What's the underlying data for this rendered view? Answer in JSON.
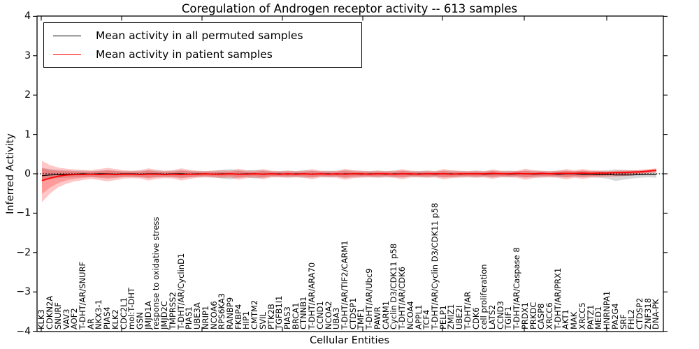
{
  "chart_data": {
    "type": "line",
    "title": "Coregulation of Androgen receptor activity -- 613 samples",
    "xlabel": "Cellular Entities",
    "ylabel": "Inferred Activity",
    "ylim": [
      -4,
      4
    ],
    "yticks": [
      4,
      3,
      2,
      1,
      0,
      -1,
      -2,
      -3,
      -4
    ],
    "grid": false,
    "legend_position": "upper left",
    "zero_line": {
      "style": "dotted",
      "color": "#000000"
    },
    "categories": [
      "KLK3",
      "CDKN2A",
      "SNURF",
      "VAV3",
      "AOF2",
      "T-DHT/AR/SNURF",
      "AR",
      "NKX3-1",
      "PIAS4",
      "KLK2",
      "CDC2L1",
      "mol:T-DHT",
      "GSN",
      "JMJD1A",
      "response to oxidative stress",
      "JMJD2C",
      "TMPRSS2",
      "T-DHT/AR/CyclinD1",
      "PIAS1",
      "UBE3A",
      "NRIP1",
      "NCOA6",
      "RPS6KA3",
      "RANBP9",
      "FKBP4",
      "HIP1",
      "CMTM2",
      "SVIL",
      "PTK2B",
      "TGFB1I1",
      "PIAS3",
      "BRCA1",
      "CTNNB1",
      "T-DHT/AR/ARA70",
      "CCND1",
      "NCOA2",
      "UBA3",
      "T-DHT/AR/TIF2/CARM1",
      "CTDSP1",
      "TMF1",
      "T-DHT/AR/Ubc9",
      "PAWR",
      "CARM1",
      "Cyclin D3/CDK11 p58",
      "T-DHT/AR/CDK6",
      "NCOA4",
      "APPL1",
      "TCF4",
      "T-DHT/AR/Cyclin D3/CDK11 p58",
      "PELP1",
      "ZMIZ1",
      "UBE2I",
      "T-DHT/AR",
      "CDK6",
      "cell proliferation",
      "LATS2",
      "CCND3",
      "TGIF1",
      "T-DHT/AR/Caspase 8",
      "PRDX1",
      "PRKDC",
      "CASP8",
      "XRCC6",
      "T-DHT/AR/PRX1",
      "AKT1",
      "MAK",
      "XRCC5",
      "PATZ1",
      "MED1",
      "HNRNPA1",
      "PA2G4",
      "SRF",
      "FHL2",
      "CTDSP2",
      "ZNF318",
      "DNA-PK"
    ],
    "series": [
      {
        "name": "Mean activity in all permuted samples",
        "color": "#000000",
        "values": [
          -0.05,
          -0.03,
          -0.02,
          -0.01,
          -0.01,
          0,
          -0.01,
          0,
          0,
          -0.01,
          0,
          0,
          -0.01,
          0,
          0,
          -0.01,
          0,
          0,
          -0.01,
          0,
          0,
          -0.01,
          0,
          0,
          -0.01,
          0,
          0,
          -0.01,
          0,
          0,
          -0.01,
          0,
          0,
          -0.01,
          0,
          0,
          -0.01,
          0,
          0,
          -0.01,
          0,
          0,
          -0.01,
          0,
          0,
          -0.01,
          0,
          0,
          -0.01,
          0,
          0,
          -0.01,
          0,
          0,
          -0.01,
          0,
          0,
          -0.01,
          0,
          0,
          -0.01,
          0,
          0,
          -0.01,
          0,
          0,
          -0.01,
          -0.01,
          -0.02,
          -0.02,
          -0.03,
          -0.03,
          -0.03,
          -0.02,
          -0.01,
          -0.01
        ]
      },
      {
        "name": "Mean activity in patient samples",
        "color": "#ff0000",
        "values": [
          -0.17,
          -0.11,
          -0.06,
          -0.03,
          -0.02,
          -0.02,
          -0.01,
          -0.02,
          -0.01,
          -0.02,
          -0.01,
          -0.01,
          -0.02,
          -0.01,
          -0.01,
          -0.02,
          -0.01,
          -0.02,
          -0.01,
          -0.01,
          0,
          -0.01,
          -0.01,
          0,
          -0.01,
          -0.01,
          0,
          -0.01,
          0,
          -0.01,
          0,
          -0.01,
          0,
          -0.01,
          0,
          -0.01,
          0,
          -0.01,
          0,
          0,
          -0.01,
          0,
          0,
          -0.01,
          0,
          0,
          -0.01,
          0,
          0,
          0,
          -0.01,
          0,
          0,
          0,
          0,
          0.01,
          0,
          0,
          0.01,
          0,
          0,
          0.01,
          0,
          0.01,
          0.01,
          0.01,
          0.02,
          0.01,
          0.02,
          0.02,
          0.03,
          0.03,
          0.04,
          0.05,
          0.07,
          0.09
        ]
      }
    ],
    "bands": [
      {
        "name": "permuted samples spread",
        "color": "#999999",
        "opacity": 0.38,
        "upper": [
          0.15,
          0.12,
          0.1,
          0.09,
          0.08,
          0.08,
          0.07,
          0.08,
          0.09,
          0.08,
          0.07,
          0.07,
          0.08,
          0.09,
          0.08,
          0.07,
          0.08,
          0.09,
          0.08,
          0.07,
          0.07,
          0.08,
          0.1,
          0.12,
          0.09,
          0.08,
          0.1,
          0.09,
          0.07,
          0.07,
          0.08,
          0.07,
          0.09,
          0.08,
          0.07,
          0.08,
          0.07,
          0.09,
          0.08,
          0.07,
          0.07,
          0.08,
          0.07,
          0.08,
          0.08,
          0.07,
          0.07,
          0.08,
          0.07,
          0.08,
          0.08,
          0.07,
          0.07,
          0.08,
          0.07,
          0.08,
          0.07,
          0.08,
          0.07,
          0.08,
          0.08,
          0.07,
          0.07,
          0.08,
          0.08,
          0.07,
          0.08,
          0.07,
          0.08,
          0.09,
          0.11,
          0.1,
          0.09,
          0.08,
          0.08,
          0.09
        ],
        "lower": [
          -0.17,
          -0.13,
          -0.11,
          -0.1,
          -0.09,
          -0.08,
          -0.08,
          -0.09,
          -0.1,
          -0.09,
          -0.08,
          -0.08,
          -0.09,
          -0.1,
          -0.09,
          -0.08,
          -0.09,
          -0.1,
          -0.09,
          -0.08,
          -0.08,
          -0.09,
          -0.12,
          -0.14,
          -0.1,
          -0.09,
          -0.12,
          -0.1,
          -0.08,
          -0.08,
          -0.09,
          -0.08,
          -0.1,
          -0.09,
          -0.08,
          -0.09,
          -0.08,
          -0.1,
          -0.09,
          -0.08,
          -0.08,
          -0.09,
          -0.08,
          -0.09,
          -0.09,
          -0.08,
          -0.08,
          -0.09,
          -0.08,
          -0.09,
          -0.09,
          -0.08,
          -0.08,
          -0.09,
          -0.08,
          -0.09,
          -0.08,
          -0.09,
          -0.08,
          -0.09,
          -0.09,
          -0.08,
          -0.08,
          -0.09,
          -0.09,
          -0.08,
          -0.09,
          -0.08,
          -0.1,
          -0.12,
          -0.18,
          -0.15,
          -0.12,
          -0.1,
          -0.09,
          -0.1
        ]
      },
      {
        "name": "patient samples spread",
        "color": "#ff0000",
        "opacity": 0.22,
        "upper": [
          0.33,
          0.22,
          0.16,
          0.13,
          0.11,
          0.1,
          0.09,
          0.12,
          0.15,
          0.12,
          0.09,
          0.08,
          0.09,
          0.14,
          0.1,
          0.08,
          0.09,
          0.14,
          0.1,
          0.08,
          0.07,
          0.08,
          0.09,
          0.08,
          0.13,
          0.09,
          0.08,
          0.12,
          0.08,
          0.07,
          0.08,
          0.07,
          0.08,
          0.12,
          0.08,
          0.07,
          0.08,
          0.13,
          0.09,
          0.08,
          0.07,
          0.08,
          0.07,
          0.08,
          0.12,
          0.08,
          0.07,
          0.08,
          0.07,
          0.12,
          0.09,
          0.08,
          0.07,
          0.08,
          0.07,
          0.11,
          0.08,
          0.07,
          0.08,
          0.13,
          0.09,
          0.08,
          0.07,
          0.08,
          0.12,
          0.09,
          0.12,
          0.09,
          0.08,
          0.07,
          0.08,
          0.09,
          0.09,
          0.1,
          0.12,
          0.14
        ],
        "lower": [
          -0.72,
          -0.5,
          -0.34,
          -0.25,
          -0.19,
          -0.16,
          -0.13,
          -0.16,
          -0.19,
          -0.16,
          -0.12,
          -0.11,
          -0.12,
          -0.17,
          -0.13,
          -0.11,
          -0.12,
          -0.17,
          -0.13,
          -0.1,
          -0.09,
          -0.1,
          -0.11,
          -0.1,
          -0.15,
          -0.11,
          -0.1,
          -0.14,
          -0.09,
          -0.09,
          -0.1,
          -0.09,
          -0.1,
          -0.14,
          -0.09,
          -0.09,
          -0.1,
          -0.15,
          -0.11,
          -0.1,
          -0.09,
          -0.1,
          -0.09,
          -0.1,
          -0.14,
          -0.09,
          -0.09,
          -0.1,
          -0.09,
          -0.14,
          -0.11,
          -0.1,
          -0.09,
          -0.1,
          -0.09,
          -0.13,
          -0.09,
          -0.09,
          -0.1,
          -0.15,
          -0.11,
          -0.1,
          -0.09,
          -0.1,
          -0.14,
          -0.1,
          -0.13,
          -0.1,
          -0.09,
          -0.08,
          -0.07,
          -0.06,
          -0.04,
          -0.01,
          0.01,
          0.03
        ]
      }
    ]
  }
}
